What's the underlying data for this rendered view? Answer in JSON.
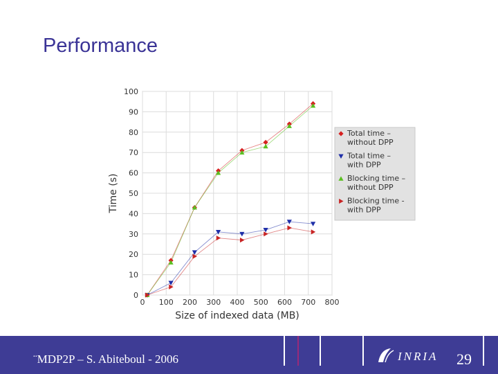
{
  "slide": {
    "title": "Performance",
    "footer": "¨MDP2P – S. Abiteboul - 2006",
    "page_number": "29",
    "logo_text": "INRIA"
  },
  "chart_data": {
    "type": "line",
    "xlabel": "Size of indexed data (MB)",
    "ylabel": "Time (s)",
    "xlim": [
      0,
      800
    ],
    "ylim": [
      0,
      100
    ],
    "xticks": [
      0,
      100,
      200,
      300,
      400,
      500,
      600,
      700,
      800
    ],
    "yticks": [
      0,
      10,
      20,
      30,
      40,
      50,
      60,
      70,
      80,
      90,
      100
    ],
    "grid": true,
    "legend_position": "right",
    "series": [
      {
        "name": "Total time – without DPP",
        "marker": "diamond",
        "color": "#d62020",
        "x": [
          20,
          120,
          220,
          320,
          420,
          520,
          620,
          720
        ],
        "y": [
          0,
          17,
          43,
          61,
          71,
          75,
          84,
          94
        ]
      },
      {
        "name": "Total time – with DPP",
        "marker": "triangle-down",
        "color": "#1f2fa8",
        "x": [
          20,
          120,
          220,
          320,
          420,
          520,
          620,
          720
        ],
        "y": [
          0,
          6,
          21,
          31,
          30,
          32,
          36,
          35
        ]
      },
      {
        "name": "Blocking time – without DPP",
        "marker": "triangle-up",
        "color": "#5bbf21",
        "x": [
          20,
          120,
          220,
          320,
          420,
          520,
          620,
          720
        ],
        "y": [
          0,
          16,
          43,
          60,
          70,
          73,
          83,
          93
        ]
      },
      {
        "name": "Blocking time - with DPP",
        "marker": "triangle-right",
        "color": "#c82424",
        "x": [
          20,
          120,
          220,
          320,
          420,
          520,
          620,
          720
        ],
        "y": [
          0,
          4,
          19,
          28,
          27,
          30,
          33,
          31
        ]
      }
    ],
    "legend_lines": [
      [
        "Total time –",
        "without DPP"
      ],
      [
        "Total time –",
        "with DPP"
      ],
      [
        "Blocking time –",
        "without DPP"
      ],
      [
        "Blocking time -",
        "with DPP"
      ]
    ]
  }
}
